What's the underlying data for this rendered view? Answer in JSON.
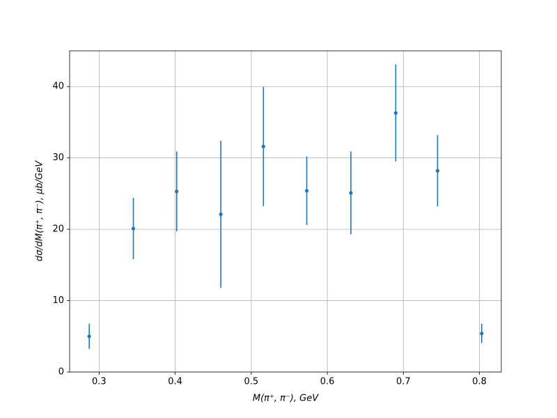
{
  "chart_data": {
    "type": "errorbar",
    "xlabel": "M(π⁺, π⁻), GeV",
    "ylabel": "dσ/dM(π⁺, π⁻), μb/GeV",
    "x": [
      0.287,
      0.345,
      0.402,
      0.46,
      0.516,
      0.573,
      0.631,
      0.69,
      0.745,
      0.803
    ],
    "series": [
      {
        "color": "#1f77b4",
        "values": [
          5.0,
          20.1,
          25.3,
          22.1,
          31.6,
          25.4,
          25.1,
          36.3,
          28.2,
          5.4
        ],
        "errors": [
          1.75,
          4.3,
          5.6,
          10.3,
          8.35,
          4.8,
          5.8,
          6.8,
          5.0,
          1.35
        ]
      }
    ],
    "xlim": [
      0.2612,
      0.8288
    ],
    "ylim": [
      0,
      45
    ],
    "xticks": [
      0.3,
      0.4,
      0.5,
      0.6,
      0.7,
      0.8
    ],
    "yticks": [
      0,
      10,
      20,
      30,
      40
    ],
    "grid": true
  }
}
